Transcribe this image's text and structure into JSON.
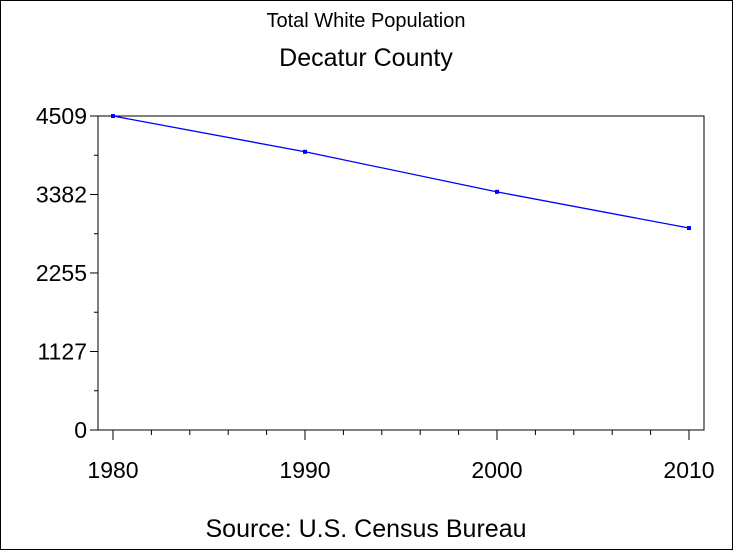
{
  "chart_data": {
    "type": "line",
    "title": "Total White Population",
    "subtitle": "Decatur County",
    "footnote": "Source: U.S. Census Bureau",
    "xlabel": "",
    "ylabel": "",
    "x_ticks": [
      "1980",
      "1990",
      "2000",
      "2010"
    ],
    "y_ticks": [
      "0",
      "1127",
      "2255",
      "3382",
      "4509"
    ],
    "ylim": [
      0,
      4509
    ],
    "xlim": [
      1980,
      2010
    ],
    "grid": false,
    "series": [
      {
        "x": [
          1980,
          1990,
          2000,
          2010
        ],
        "values": [
          4509,
          3995,
          3420,
          2900
        ],
        "color": "#0000ff"
      }
    ]
  }
}
